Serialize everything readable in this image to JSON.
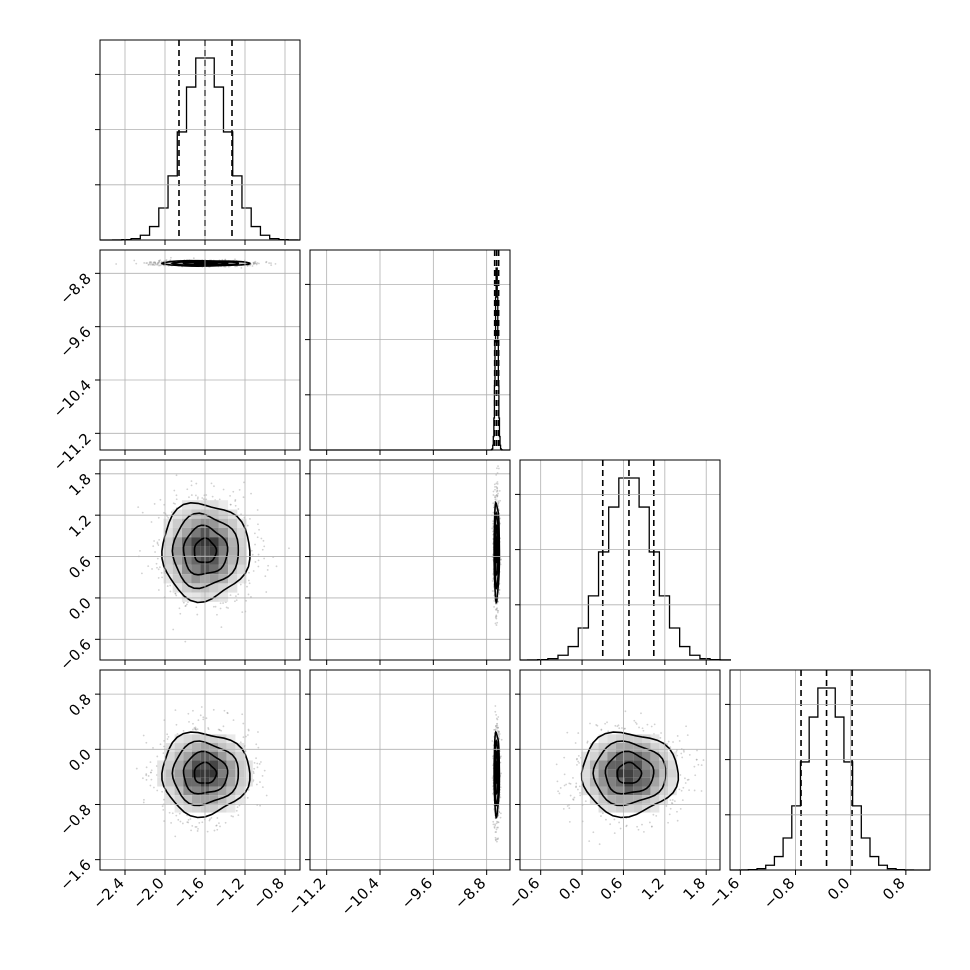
{
  "chart_data": {
    "type": "corner",
    "parameters": [
      {
        "mean": -1.6,
        "sd": 0.22,
        "quantiles": [
          -1.86,
          -1.6,
          -1.33
        ],
        "range": [
          -2.65,
          -0.65
        ],
        "ticks": [
          "-2.4",
          "-2.0",
          "-1.6",
          "-1.2",
          "-0.8"
        ],
        "tick_values": [
          -2.4,
          -2.0,
          -1.6,
          -1.2,
          -0.8
        ]
      },
      {
        "mean": -8.65,
        "sd": 0.02,
        "quantiles": [
          -8.68,
          -8.65,
          -8.62
        ],
        "range": [
          -11.45,
          -8.45
        ],
        "ticks": [
          "-11.2",
          "-10.4",
          "-9.6",
          "-8.8"
        ],
        "tick_values": [
          -11.2,
          -10.4,
          -9.6,
          -8.8
        ]
      },
      {
        "mean": 0.68,
        "sd": 0.35,
        "quantiles": [
          0.3,
          0.68,
          1.04
        ],
        "range": [
          -0.9,
          2.0
        ],
        "ticks": [
          "-0.6",
          "0.0",
          "0.6",
          "1.2",
          "1.8"
        ],
        "tick_values": [
          -0.6,
          0.0,
          0.6,
          1.2,
          1.8
        ]
      },
      {
        "mean": -0.35,
        "sd": 0.3,
        "quantiles": [
          -0.72,
          -0.35,
          0.02
        ],
        "range": [
          -1.75,
          1.15
        ],
        "ticks": [
          "-1.6",
          "-0.8",
          "0.0",
          "0.8"
        ],
        "tick_values": [
          -1.6,
          -0.8,
          0.0,
          0.8
        ]
      }
    ],
    "pairs": [
      {
        "row": 1,
        "col": 0
      },
      {
        "row": 2,
        "col": 0
      },
      {
        "row": 2,
        "col": 1
      },
      {
        "row": 3,
        "col": 0
      },
      {
        "row": 3,
        "col": 1
      },
      {
        "row": 3,
        "col": 2
      }
    ],
    "contour_levels_sigma": [
      0.5,
      1.0,
      1.5,
      2.0
    ],
    "grid": true,
    "histogram_bins": 20,
    "colors": {
      "line": "#000000",
      "grid": "#b0b0b0",
      "points": "#9a9a9a"
    }
  }
}
